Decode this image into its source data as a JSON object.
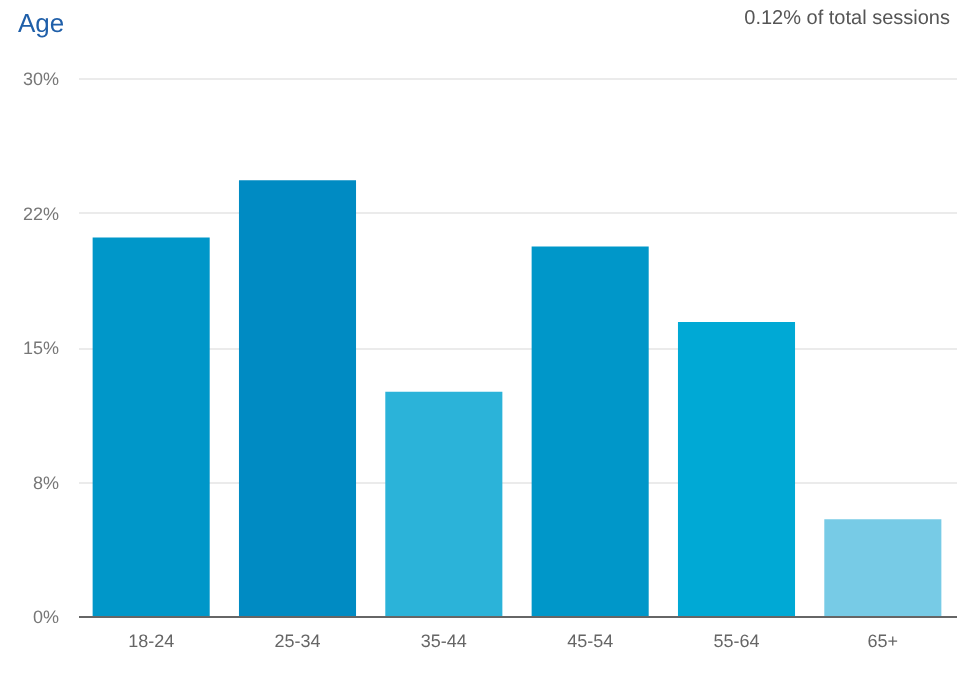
{
  "chart_data": {
    "type": "bar",
    "title": "Age",
    "annotations": [
      "0.12% of total sessions"
    ],
    "categories": [
      "18-24",
      "25-34",
      "35-44",
      "45-54",
      "55-64",
      "65+"
    ],
    "values": [
      21.1,
      24.3,
      12.5,
      20.6,
      16.4,
      5.4
    ],
    "colors": [
      "#0097c9",
      "#008bc3",
      "#2bb3d9",
      "#0097c9",
      "#00a9d5",
      "#77cbe6"
    ],
    "ylim": [
      0,
      30
    ],
    "yticks": [
      {
        "value": 0,
        "label": "0%"
      },
      {
        "value": 7.5,
        "label": "8%"
      },
      {
        "value": 15,
        "label": "15%"
      },
      {
        "value": 22.5,
        "label": "22%"
      },
      {
        "value": 30,
        "label": "30%"
      }
    ],
    "grid": "y"
  }
}
